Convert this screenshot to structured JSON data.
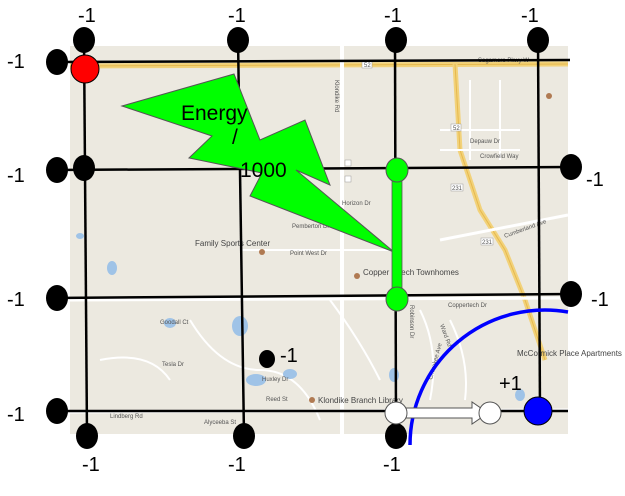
{
  "colors": {
    "map_bg": "#ece9e0",
    "grid_line": "#000000",
    "black_node": "#000000",
    "start_node": "#ff0000",
    "goal_node": "#0000ff",
    "green": "#00ff00",
    "path_node": "#ffffff",
    "arc": "#0000ff"
  },
  "labels": {
    "top": [
      "-1",
      "-1",
      "-1",
      "-1"
    ],
    "left": [
      "-1",
      "-1",
      "-1",
      "-1"
    ],
    "right": [
      "-1",
      "-1"
    ],
    "bottom": [
      "-1",
      "-1",
      "-1"
    ],
    "inner": "-1",
    "goal_reward": "+1"
  },
  "energy": {
    "line1": "Energy",
    "line2": "/",
    "line3": "1000"
  },
  "map": {
    "roads": [
      "Sagamore Pkwy W",
      "Klondike Rd",
      "Horizon Dr",
      "Point West Dr",
      "Pemberton Dr",
      "Depauw Dr",
      "Crowfield Way",
      "Cumberland Ave",
      "Goodall Ct",
      "Tesla Dr",
      "Huxley Dr",
      "Reed St",
      "Lindberg Rd",
      "Alyceeba St",
      "Ward Rd",
      "Robinson Dr",
      "Coppertech Dr",
      "Cherokee Ave"
    ],
    "places": [
      "Family Sports Center",
      "Copper Beech Townhomes",
      "Klondike Branch Library",
      "McCormick Place Apartments"
    ],
    "shields": [
      "52",
      "52",
      "231",
      "231"
    ]
  }
}
